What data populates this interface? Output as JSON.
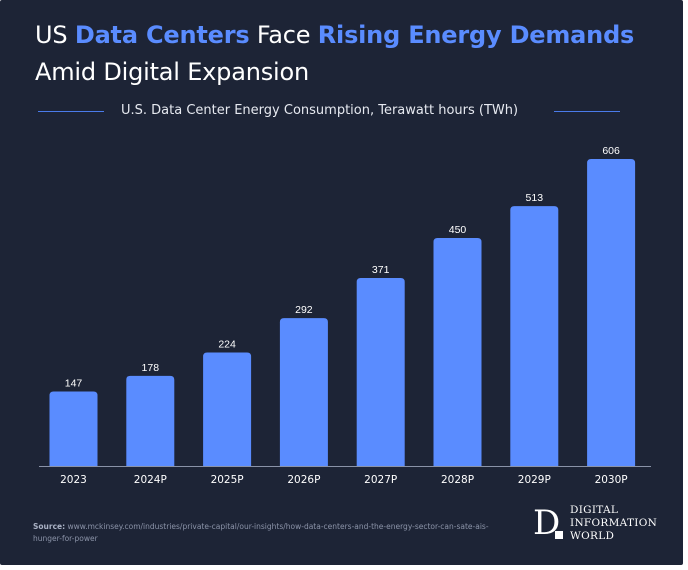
{
  "header": {
    "title_parts": [
      {
        "text": "US ",
        "highlight": false
      },
      {
        "text": "Data Centers",
        "highlight": true
      },
      {
        "text": " Face ",
        "highlight": false
      },
      {
        "text": "Rising Energy Demands",
        "highlight": true
      },
      {
        "text": " Amid Digital Expansion",
        "highlight": false
      }
    ],
    "subtitle": "U.S. Data Center Energy Consumption, Terawatt hours (TWh)"
  },
  "colors": {
    "background": "#1d2436",
    "bar": "#5a8cff",
    "accent": "#5a8cff",
    "text": "#ffffff",
    "axis": "#8a93a8"
  },
  "chart_data": {
    "type": "bar",
    "title": "U.S. Data Center Energy Consumption, Terawatt hours (TWh)",
    "categories": [
      "2023",
      "2024P",
      "2025P",
      "2026P",
      "2027P",
      "2028P",
      "2029P",
      "2030P"
    ],
    "values": [
      147,
      178,
      224,
      292,
      371,
      450,
      513,
      606
    ],
    "data_labels": [
      "147",
      "178",
      "224",
      "292",
      "371",
      "450",
      "513",
      "606"
    ],
    "xlabel": "",
    "ylabel": "",
    "ylim": [
      0,
      606
    ],
    "grid": false,
    "legend": "none"
  },
  "footer": {
    "source_label": "Source:",
    "source_text": "www.mckinsey.com/industries/private-capital/our-insights/how-data-centers-and-the-energy-sector-can-sate-ais-hunger-for-power",
    "logo_mark": "D",
    "logo_lines": [
      "DIGITAL",
      "INFORMATION",
      "WORLD"
    ]
  }
}
